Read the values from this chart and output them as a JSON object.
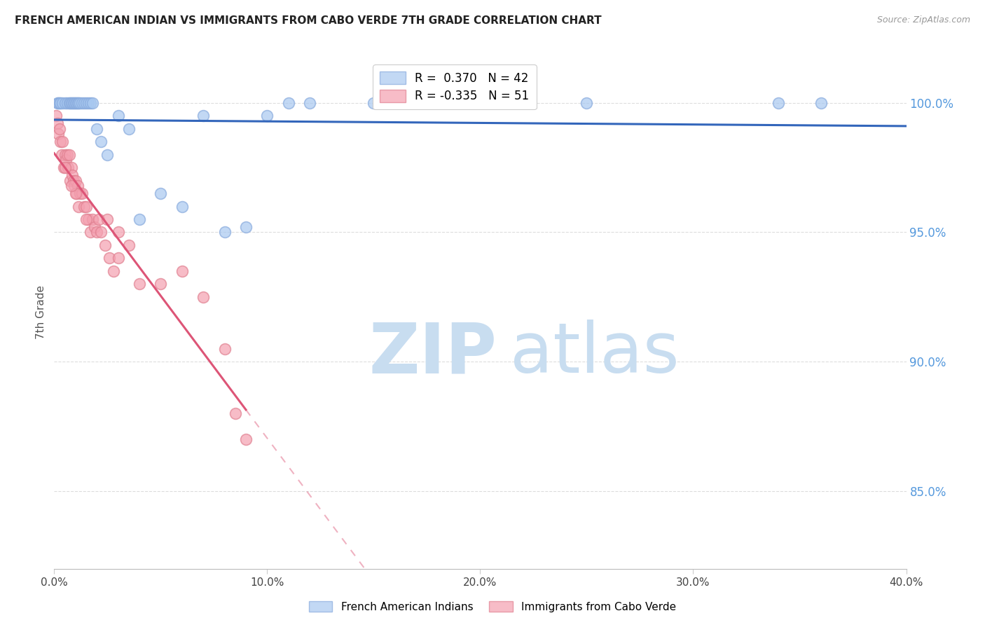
{
  "title": "FRENCH AMERICAN INDIAN VS IMMIGRANTS FROM CABO VERDE 7TH GRADE CORRELATION CHART",
  "source": "Source: ZipAtlas.com",
  "ylabel": "7th Grade",
  "xlabel_ticks": [
    "0.0%",
    "10.0%",
    "20.0%",
    "30.0%",
    "40.0%"
  ],
  "xlabel_vals": [
    0.0,
    10.0,
    20.0,
    30.0,
    40.0
  ],
  "ylabel_ticks": [
    "85.0%",
    "90.0%",
    "95.0%",
    "100.0%"
  ],
  "ylabel_vals": [
    85.0,
    90.0,
    95.0,
    100.0
  ],
  "xmin": 0.0,
  "xmax": 40.0,
  "ymin": 82.0,
  "ymax": 101.8,
  "blue_R": 0.37,
  "blue_N": 42,
  "pink_R": -0.335,
  "pink_N": 51,
  "blue_label": "French American Indians",
  "pink_label": "Immigrants from Cabo Verde",
  "blue_color": "#a8c8f0",
  "pink_color": "#f4a0b0",
  "blue_edge_color": "#88aadd",
  "pink_edge_color": "#e08090",
  "blue_line_color": "#3366bb",
  "pink_line_color": "#dd5577",
  "grid_color": "#dddddd",
  "title_color": "#222222",
  "source_color": "#999999",
  "right_axis_color": "#5599dd",
  "watermark_zip_color": "#c8ddf0",
  "watermark_atlas_color": "#c8ddf0",
  "blue_scatter_x": [
    0.15,
    0.2,
    0.25,
    0.3,
    0.4,
    0.5,
    0.6,
    0.7,
    0.75,
    0.8,
    0.85,
    0.9,
    0.95,
    1.0,
    1.05,
    1.1,
    1.15,
    1.2,
    1.3,
    1.4,
    1.5,
    1.6,
    1.7,
    1.8,
    2.0,
    2.2,
    2.5,
    3.0,
    3.5,
    4.0,
    5.0,
    6.0,
    7.0,
    8.0,
    9.0,
    10.0,
    11.0,
    12.0,
    15.0,
    25.0,
    34.0,
    36.0
  ],
  "blue_scatter_y": [
    100.0,
    100.0,
    100.0,
    100.0,
    100.0,
    100.0,
    100.0,
    100.0,
    100.0,
    100.0,
    100.0,
    100.0,
    100.0,
    100.0,
    100.0,
    100.0,
    100.0,
    100.0,
    100.0,
    100.0,
    100.0,
    100.0,
    100.0,
    100.0,
    99.0,
    98.5,
    98.0,
    99.5,
    99.0,
    95.5,
    96.5,
    96.0,
    99.5,
    95.0,
    95.2,
    99.5,
    100.0,
    100.0,
    100.0,
    100.0,
    100.0,
    100.0
  ],
  "pink_scatter_x": [
    0.1,
    0.15,
    0.2,
    0.25,
    0.3,
    0.35,
    0.4,
    0.45,
    0.5,
    0.55,
    0.6,
    0.65,
    0.7,
    0.75,
    0.8,
    0.85,
    0.9,
    0.95,
    1.0,
    1.05,
    1.1,
    1.15,
    1.2,
    1.3,
    1.4,
    1.5,
    1.6,
    1.7,
    1.8,
    1.9,
    2.0,
    2.1,
    2.2,
    2.4,
    2.6,
    2.8,
    3.0,
    3.5,
    4.0,
    5.0,
    6.0,
    7.0,
    8.0,
    8.5,
    9.0,
    1.5,
    2.5,
    3.0,
    1.0,
    0.8,
    0.5
  ],
  "pink_scatter_y": [
    99.5,
    99.2,
    98.8,
    99.0,
    98.5,
    98.0,
    98.5,
    97.5,
    98.0,
    97.8,
    98.0,
    97.5,
    98.0,
    97.0,
    97.5,
    97.2,
    97.0,
    96.8,
    97.0,
    96.5,
    96.8,
    96.0,
    96.5,
    96.5,
    96.0,
    96.0,
    95.5,
    95.0,
    95.5,
    95.2,
    95.0,
    95.5,
    95.0,
    94.5,
    94.0,
    93.5,
    94.0,
    94.5,
    93.0,
    93.0,
    93.5,
    92.5,
    90.5,
    88.0,
    87.0,
    95.5,
    95.5,
    95.0,
    96.5,
    96.8,
    97.5
  ],
  "pink_solid_end_x": 9.0,
  "pink_dash_end_x": 40.0
}
